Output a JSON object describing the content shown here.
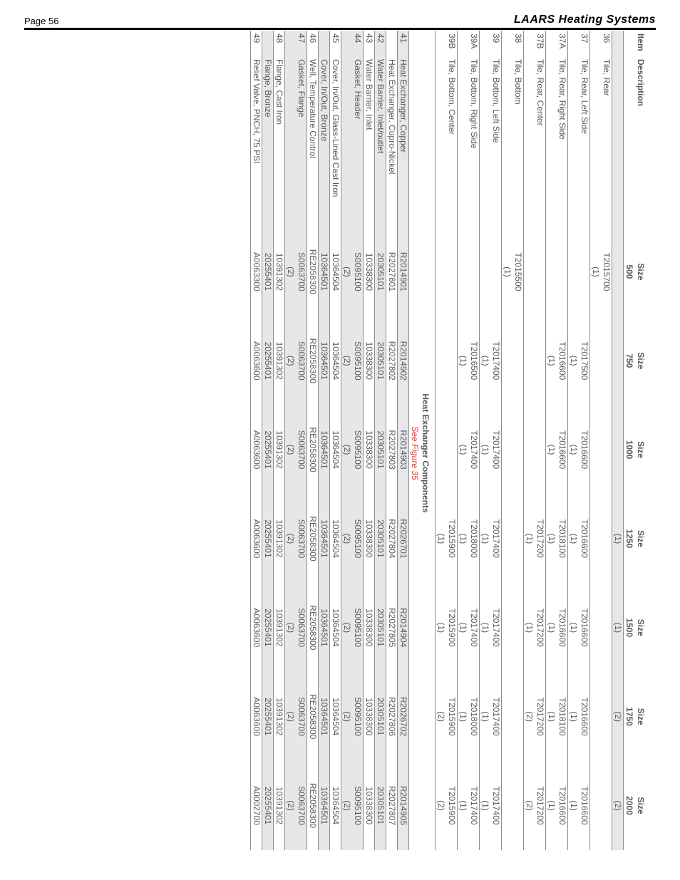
{
  "header": {
    "page_label": "Page 56",
    "brand": "LAARS Heating Systems"
  },
  "columns": {
    "item": "Item",
    "desc": "Description",
    "sizes": [
      "Size",
      "Size",
      "Size",
      "Size",
      "Size",
      "Size",
      "Size"
    ],
    "size_vals": [
      "500",
      "750",
      "1000",
      "1250",
      "1500",
      "1750",
      "2000"
    ]
  },
  "section1_rows": [
    {
      "item": "",
      "desc": "",
      "cells": [
        "",
        "",
        "",
        "(1)",
        "(1)",
        "(2)",
        "(2)"
      ],
      "shade": true,
      "sep": true
    },
    {
      "item": "36",
      "desc": "Tile, Rear",
      "cells": [
        "T2015700",
        "",
        "",
        "",
        "",
        "",
        ""
      ]
    },
    {
      "item": "",
      "desc": "",
      "cells": [
        "(1)",
        "",
        "",
        "",
        "",
        "",
        ""
      ],
      "sep": true
    },
    {
      "item": "37",
      "desc": "Tile, Rear, Left Side",
      "cells": [
        "",
        "T2017500",
        "T2016600",
        "T2016600",
        "T2016600",
        "T2016600",
        "T2016600"
      ]
    },
    {
      "item": "",
      "desc": "",
      "cells": [
        "",
        "(1)",
        "(1)",
        "(1)",
        "(1)",
        "(1)",
        "(1)"
      ],
      "sep": true
    },
    {
      "item": "37A",
      "desc": "Tile, Rear, Right Side",
      "cells": [
        "",
        "T2016600",
        "T2016600",
        "T2018100",
        "T2016600",
        "T2018100",
        "T2016600"
      ]
    },
    {
      "item": "",
      "desc": "",
      "cells": [
        "",
        "(1)",
        "(1)",
        "(1)",
        "(1)",
        "(1)",
        "(1)"
      ],
      "sep": true
    },
    {
      "item": "37B",
      "desc": "Tile, Rear, Center",
      "cells": [
        "",
        "",
        "",
        "T2017200",
        "T2017200",
        "T2017200",
        "T2017200"
      ]
    },
    {
      "item": "",
      "desc": "",
      "cells": [
        "",
        "",
        "",
        "(1)",
        "(1)",
        "(2)",
        "(2)"
      ],
      "sep": true
    },
    {
      "item": "38",
      "desc": "Tile, Bottom",
      "cells": [
        "T2015500",
        "",
        "",
        "",
        "",
        "",
        ""
      ]
    },
    {
      "item": "",
      "desc": "",
      "cells": [
        "(1)",
        "",
        "",
        "",
        "",
        "",
        ""
      ],
      "sep": true
    },
    {
      "item": "39",
      "desc": "Tile, Bottom, Left Side",
      "cells": [
        "",
        "T2017400",
        "T2017400",
        "T2017400",
        "T2017400",
        "T2017400",
        "T2017400"
      ]
    },
    {
      "item": "",
      "desc": "",
      "cells": [
        "",
        "(1)",
        "(1)",
        "(1)",
        "(1)",
        "(1)",
        "(1)"
      ],
      "sep": true
    },
    {
      "item": "39A",
      "desc": "Tile, Bottom, Right Side",
      "cells": [
        "",
        "T2016500",
        "T2017400",
        "T2018000",
        "T2017400",
        "T2018000",
        "T2017400"
      ]
    },
    {
      "item": "",
      "desc": "",
      "cells": [
        "",
        "(1)",
        "(1)",
        "(1)",
        "(1)",
        "(1)",
        "(1)"
      ],
      "sep": true,
      "shade": false
    },
    {
      "item": "39B",
      "desc": "Tile, Bottom, Center",
      "cells": [
        "",
        "",
        "",
        "T2015900",
        "T2015900",
        "T2015900",
        "T2015900"
      ]
    },
    {
      "item": "",
      "desc": "",
      "cells": [
        "",
        "",
        "",
        "(1)",
        "(1)",
        "(2)",
        "(2)"
      ],
      "sep": true
    }
  ],
  "section2": {
    "title": "Heat Exchanger Components",
    "subtitle": "See Figure 35"
  },
  "section2_rows": [
    {
      "item": "41",
      "desc": "Heat Exchanger, Copper",
      "cells": [
        "R2014901",
        "R2014902",
        "R2014903",
        "R2026701",
        "R2014904",
        "R2026702",
        "R2014905"
      ],
      "shade": true,
      "sep": true
    },
    {
      "item": "",
      "desc": "Heat Exchanger, Cupro-Nickel",
      "cells": [
        "R2027801",
        "R2027802",
        "R2027803",
        "R2027804",
        "R2027805",
        "R2027806",
        "R2027807"
      ],
      "sep": true
    },
    {
      "item": "42",
      "desc": "Water Barrier, Inlet/outlet",
      "cells": [
        "20305101",
        "20305101",
        "20305101",
        "20305101",
        "20305101",
        "20305101",
        "20305101"
      ],
      "shade": true,
      "sep": true
    },
    {
      "item": "43",
      "desc": "Water Barrier, Inlet",
      "cells": [
        "10338300",
        "10338300",
        "10338300",
        "10338300",
        "10338300",
        "10338300",
        "10338300"
      ],
      "sep": true
    },
    {
      "item": "44",
      "desc": "Gasket, Header",
      "cells": [
        "S0095100",
        "S0095100",
        "S0095100",
        "S0095100",
        "S0095100",
        "S0095100",
        "S0095100"
      ],
      "shade": true
    },
    {
      "item": "",
      "desc": "",
      "cells": [
        "(2)",
        "(2)",
        "(2)",
        "(2)",
        "(2)",
        "(2)",
        "(2)"
      ],
      "shade": true,
      "sep": true
    },
    {
      "item": "45",
      "desc": "Cover, In/Out, Glass-Lined Cast Iron",
      "cells": [
        "10364504",
        "10364504",
        "10364504",
        "10364504",
        "10364504",
        "10364504",
        "10364504"
      ],
      "sep": true
    },
    {
      "item": "",
      "desc": "Cover, In/Out, Bronze",
      "cells": [
        "10364501",
        "10364501",
        "10364501",
        "10364501",
        "10364501",
        "10364501",
        "10364501"
      ],
      "shade": true,
      "sep": true
    },
    {
      "item": "46",
      "desc": "Well, Temperature Control",
      "cells": [
        "RE2058300",
        "RE2058300",
        "RE2058300",
        "RE2058300",
        "RE2058300",
        "RE2058300",
        "RE2058300"
      ],
      "sep": true
    },
    {
      "item": "47",
      "desc": "Gasket, Flange",
      "cells": [
        "S0063700",
        "S0063700",
        "S0063700",
        "S0063700",
        "S0063700",
        "S0063700",
        "S0063700"
      ],
      "shade": true
    },
    {
      "item": "",
      "desc": "",
      "cells": [
        "(2)",
        "(2)",
        "(2)",
        "(2)",
        "(2)",
        "(2)",
        "(2)"
      ],
      "shade": true,
      "sep": true
    },
    {
      "item": "48",
      "desc": "Flange, Cast Iron",
      "cells": [
        "10391302",
        "10391302",
        "10391302",
        "10391302",
        "10391302",
        "10391302",
        "10391302"
      ],
      "sep": true
    },
    {
      "item": "",
      "desc": "Flange, Bronze",
      "cells": [
        "20255401",
        "20255401",
        "20255401",
        "20255401",
        "20255401",
        "20255401",
        "20255401"
      ],
      "shade": true,
      "sep": true
    },
    {
      "item": "49",
      "desc": "Relief Valve, PNCH, 75 PSI",
      "cells": [
        "A0063300",
        "A0063600",
        "A0063600",
        "A0063600",
        "A0063600",
        "A0063600",
        "A0002700"
      ],
      "sep": true
    }
  ]
}
